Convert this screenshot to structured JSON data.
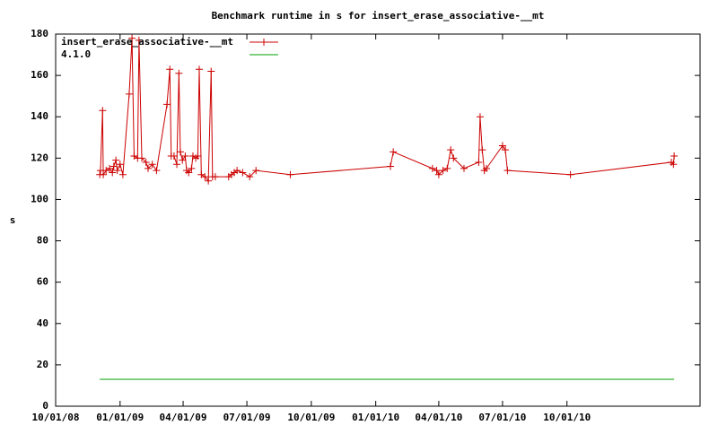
{
  "chart_data": {
    "type": "line",
    "title": "Benchmark runtime in s for insert_erase_associative-__mt",
    "y_label": "s",
    "legend": "upper left",
    "grid": false,
    "xlim": [
      "10/01/08",
      "04/09/11"
    ],
    "xticks": [
      "10/01/08",
      "01/01/09",
      "04/01/09",
      "07/01/09",
      "10/01/09",
      "01/01/10",
      "04/01/10",
      "07/01/10",
      "10/01/10"
    ],
    "ylim": [
      0,
      180
    ],
    "yticks": [
      0,
      20,
      40,
      60,
      80,
      100,
      120,
      140,
      160,
      180
    ],
    "series": [
      {
        "name": "insert_erase_associative-__mt",
        "color": "#cc0000",
        "markers": true,
        "x": [
          "12/03/08",
          "12/04/08",
          "12/07/08",
          "12/08/08",
          "12/12/08",
          "12/17/08",
          "12/21/08",
          "12/23/08",
          "12/26/08",
          "12/28/08",
          "01/01/09",
          "01/05/09",
          "01/14/09",
          "01/18/09",
          "01/21/09",
          "01/26/09",
          "01/28/09",
          "02/01/09",
          "02/07/09",
          "02/10/09",
          "02/16/09",
          "02/22/09",
          "03/09/09",
          "03/13/09",
          "03/15/09",
          "03/19/09",
          "03/23/09",
          "03/26/09",
          "03/28/09",
          "03/31/09",
          "04/04/09",
          "04/06/09",
          "04/09/09",
          "04/13/09",
          "04/15/09",
          "04/19/09",
          "04/22/09",
          "04/24/09",
          "04/27/09",
          "05/02/09",
          "05/07/09",
          "05/11/09",
          "05/13/09",
          "05/17/09",
          "06/05/09",
          "06/09/09",
          "06/13/09",
          "06/17/09",
          "06/25/09",
          "07/05/09",
          "07/14/09",
          "09/01/09",
          "01/22/10",
          "01/26/10",
          "03/23/10",
          "03/29/10",
          "04/01/10",
          "04/07/10",
          "04/13/10",
          "04/18/10",
          "04/22/10",
          "05/07/10",
          "05/28/10",
          "05/30/10",
          "06/02/10",
          "06/05/10",
          "06/08/10",
          "07/01/10",
          "07/05/10",
          "07/08/10",
          "10/06/10",
          "02/27/11",
          "03/02/11",
          "03/03/11"
        ],
        "values": [
          112,
          114,
          143,
          112,
          114,
          115,
          113,
          116,
          119,
          114,
          117,
          112,
          151,
          178,
          121,
          120,
          177,
          120,
          118,
          115,
          117,
          114,
          146,
          163,
          121,
          121,
          117,
          161,
          123,
          119,
          121,
          114,
          113,
          115,
          121,
          120,
          121,
          163,
          112,
          111,
          109,
          162,
          111,
          111,
          111,
          112,
          113,
          114,
          113,
          111,
          114,
          112,
          116,
          123,
          115,
          114,
          112,
          114,
          115,
          124,
          120,
          115,
          118,
          140,
          124,
          114,
          115,
          126,
          124,
          114,
          112,
          118,
          117,
          121
        ]
      },
      {
        "name": "4.1.0",
        "color": "#00a000",
        "markers": false,
        "x": [
          "12/03/08",
          "03/03/11"
        ],
        "values": [
          13,
          13
        ]
      }
    ]
  }
}
